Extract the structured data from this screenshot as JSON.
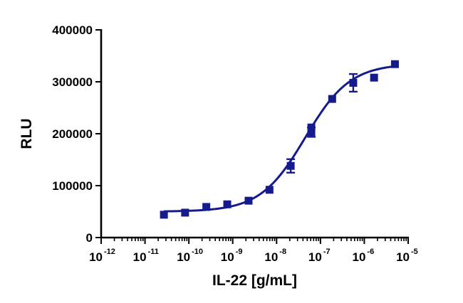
{
  "chart_data": {
    "type": "scatter",
    "title": "",
    "xlabel": "IL-22 [g/mL]",
    "ylabel": "RLU",
    "xscale": "log",
    "xlim": [
      1e-12,
      1e-05
    ],
    "ylim": [
      0,
      400000
    ],
    "x_tick_labels": [
      {
        "base": "10",
        "exp": "-12"
      },
      {
        "base": "10",
        "exp": "-11"
      },
      {
        "base": "10",
        "exp": "-10"
      },
      {
        "base": "10",
        "exp": "-9"
      },
      {
        "base": "10",
        "exp": "-8"
      },
      {
        "base": "10",
        "exp": "-7"
      },
      {
        "base": "10",
        "exp": "-6"
      },
      {
        "base": "10",
        "exp": "-5"
      }
    ],
    "y_tick_labels": [
      "0",
      "100000",
      "200000",
      "300000",
      "400000"
    ],
    "y_ticks": [
      0,
      100000,
      200000,
      300000,
      400000
    ],
    "grid": false,
    "series": [
      {
        "marker": "square",
        "color": "#151a8c",
        "points": [
          {
            "x": 2.7e-11,
            "y": 44000,
            "err": 0
          },
          {
            "x": 8.2e-11,
            "y": 48000,
            "err": 0
          },
          {
            "x": 2.5e-10,
            "y": 59000,
            "err": 0
          },
          {
            "x": 7.5e-10,
            "y": 64000,
            "err": 0
          },
          {
            "x": 2.3e-09,
            "y": 71000,
            "err": 0
          },
          {
            "x": 6.9e-09,
            "y": 92000,
            "err": 0
          },
          {
            "x": 2.1e-08,
            "y": 138000,
            "err": 13000
          },
          {
            "x": 6.2e-08,
            "y": 203000,
            "err": 9000
          },
          {
            "x": 6.2e-08,
            "y": 212000,
            "err": 0
          },
          {
            "x": 1.85e-07,
            "y": 267000,
            "err": 0
          },
          {
            "x": 5.6e-07,
            "y": 298000,
            "err": 17000
          },
          {
            "x": 1.67e-06,
            "y": 308000,
            "err": 0
          },
          {
            "x": 5e-06,
            "y": 334000,
            "err": 0
          }
        ]
      }
    ],
    "fit": {
      "type": "4PL",
      "bottom": 50000,
      "top": 335000,
      "ec50": 4.5e-08,
      "hill": 0.85,
      "x_range": [
        2.7e-11,
        5e-06
      ],
      "color": "#151a8c"
    }
  }
}
